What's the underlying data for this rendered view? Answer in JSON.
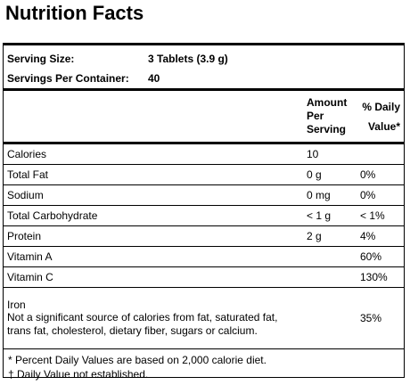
{
  "header": {
    "title": "Nutrition Facts"
  },
  "serving": [
    {
      "label": "Serving Size:",
      "value": "3 Tablets (3.9 g)"
    },
    {
      "label": "Servings Per Container:",
      "value": "40"
    }
  ],
  "table": {
    "columns": [
      "Amount Per Serving",
      "% Daily Value*"
    ],
    "rows": [
      {
        "name": "Calories",
        "amount": "10"
      },
      {
        "name": "Total Fat",
        "amount": "0 g",
        "dv": "0%"
      },
      {
        "name": "Sodium",
        "amount": "0 mg",
        "dv": "0%"
      },
      {
        "name": "Total Carbohydrate",
        "amount": "< 1 g",
        "dv": "< 1%"
      },
      {
        "name": "Protein",
        "amount": "2 g",
        "dv": "4%"
      },
      {
        "name": "Vitamin A",
        "dv": "60%"
      },
      {
        "name": "Vitamin C",
        "dv": "130%"
      },
      {
        "name": "Iron",
        "note": "Not a significant source of calories from fat, saturated fat, trans fat, cholesterol, dietary fiber, sugars or calcium.",
        "dv": "35%"
      }
    ]
  },
  "footnotes": [
    "* Percent Daily Values are based on 2,000 calorie diet.",
    "† Daily Value not established."
  ]
}
